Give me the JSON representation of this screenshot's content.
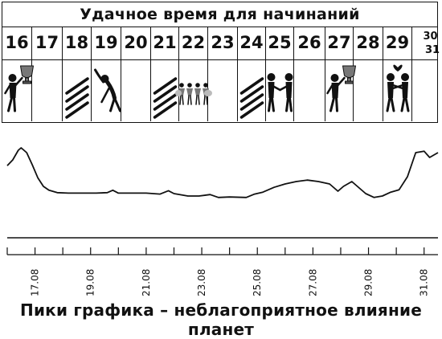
{
  "calendar": {
    "title": "Удачное время для начинаний",
    "days": [
      "16",
      "17",
      "18",
      "19",
      "20",
      "21",
      "22",
      "23",
      "24",
      "25",
      "26",
      "27",
      "28",
      "29",
      "30",
      "31"
    ]
  },
  "pictograms": {
    "16": "person-with-trophy-icon",
    "18": "diagonal-stripes-icon",
    "19": "stretching-person-icon",
    "21": "diagonal-stripes-icon",
    "22": "dancers-group-icon",
    "24": "diagonal-stripes-icon",
    "25": "handshake-icon",
    "27": "person-with-trophy-icon",
    "29": "couple-with-heart-icon"
  },
  "chart_data": {
    "type": "line",
    "x_tick_labels": [
      "17.08",
      "19.08",
      "21.08",
      "23.08",
      "25.08",
      "27.08",
      "29.08",
      "31.08"
    ],
    "xlim": [
      "16.08",
      "31.08"
    ],
    "grid": false,
    "series": [
      {
        "values": [
          [
            16.0,
            0.63
          ],
          [
            16.2,
            0.75
          ],
          [
            16.4,
            0.95
          ],
          [
            16.5,
            1.0
          ],
          [
            16.7,
            0.9
          ],
          [
            16.9,
            0.65
          ],
          [
            17.1,
            0.38
          ],
          [
            17.3,
            0.2
          ],
          [
            17.5,
            0.12
          ],
          [
            17.8,
            0.07
          ],
          [
            18.2,
            0.06
          ],
          [
            18.7,
            0.06
          ],
          [
            19.2,
            0.06
          ],
          [
            19.6,
            0.07
          ],
          [
            19.8,
            0.12
          ],
          [
            20.0,
            0.06
          ],
          [
            20.5,
            0.06
          ],
          [
            21.0,
            0.06
          ],
          [
            21.5,
            0.04
          ],
          [
            21.8,
            0.11
          ],
          [
            22.0,
            0.05
          ],
          [
            22.5,
            0.0
          ],
          [
            22.9,
            0.0
          ],
          [
            23.3,
            0.03
          ],
          [
            23.6,
            -0.03
          ],
          [
            24.0,
            -0.02
          ],
          [
            24.6,
            -0.03
          ],
          [
            24.9,
            0.04
          ],
          [
            25.2,
            0.08
          ],
          [
            25.6,
            0.18
          ],
          [
            26.0,
            0.25
          ],
          [
            26.4,
            0.3
          ],
          [
            26.8,
            0.33
          ],
          [
            27.2,
            0.3
          ],
          [
            27.6,
            0.25
          ],
          [
            27.9,
            0.1
          ],
          [
            28.1,
            0.2
          ],
          [
            28.4,
            0.3
          ],
          [
            28.6,
            0.2
          ],
          [
            28.9,
            0.05
          ],
          [
            29.2,
            -0.03
          ],
          [
            29.5,
            0.0
          ],
          [
            29.8,
            0.08
          ],
          [
            30.1,
            0.13
          ],
          [
            30.4,
            0.4
          ],
          [
            30.7,
            0.9
          ],
          [
            31.0,
            0.93
          ],
          [
            31.2,
            0.8
          ],
          [
            31.5,
            0.9
          ]
        ]
      }
    ]
  },
  "caption": "Пики графика – неблагоприятное влияние планет"
}
